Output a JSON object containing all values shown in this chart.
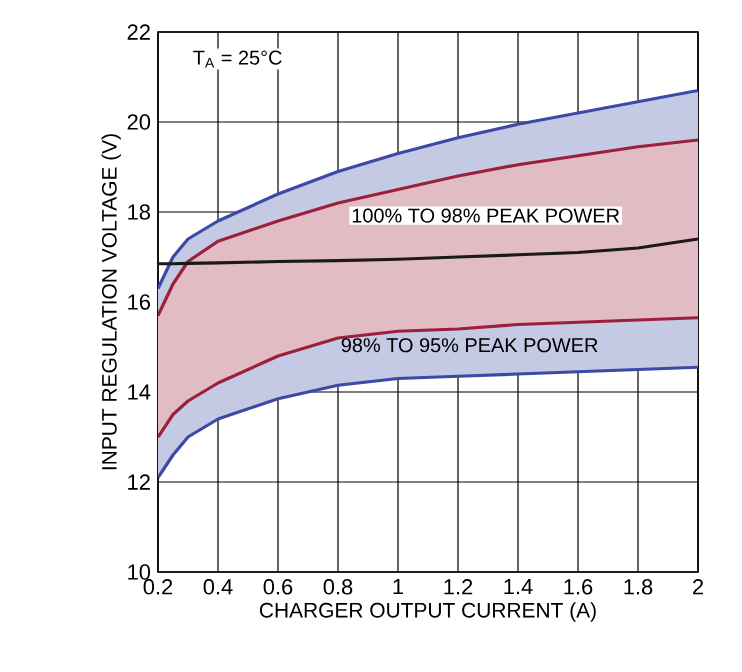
{
  "chart_data": {
    "type": "line",
    "xlabel": "CHARGER OUTPUT CURRENT (A)",
    "ylabel": "INPUT REGULATION VOLTAGE (V)",
    "x": [
      0.2,
      0.25,
      0.3,
      0.4,
      0.6,
      0.8,
      1.0,
      1.2,
      1.4,
      1.6,
      1.8,
      2.0
    ],
    "series": [
      {
        "color": "#3b4aa6",
        "values": [
          16.3,
          17.0,
          17.4,
          17.8,
          18.4,
          18.9,
          19.3,
          19.65,
          19.95,
          20.2,
          20.45,
          20.7
        ],
        "lower": [
          12.1,
          12.6,
          13.0,
          13.4,
          13.85,
          14.15,
          14.3,
          14.35,
          14.4,
          14.45,
          14.5,
          14.55
        ],
        "upper": [
          16.3,
          17.0,
          17.4,
          17.8,
          18.4,
          18.9,
          19.3,
          19.65,
          19.95,
          20.2,
          20.45,
          20.7
        ]
      },
      {
        "color": "#9c1f3c",
        "values": [
          15.7,
          16.4,
          16.9,
          17.35,
          17.8,
          18.2,
          18.5,
          18.8,
          19.05,
          19.25,
          19.45,
          19.6
        ],
        "lower": [
          13.0,
          13.5,
          13.8,
          14.2,
          14.8,
          15.2,
          15.35,
          15.4,
          15.5,
          15.55,
          15.6,
          15.65
        ],
        "upper": [
          15.7,
          16.4,
          16.9,
          17.35,
          17.8,
          18.2,
          18.5,
          18.8,
          19.05,
          19.25,
          19.45,
          19.6
        ]
      },
      {
        "color": "#9c1f3c",
        "values": [
          13.0,
          13.5,
          13.8,
          14.2,
          14.8,
          15.2,
          15.35,
          15.4,
          15.5,
          15.55,
          15.6,
          15.65
        ]
      },
      {
        "color": "#3b4aa6",
        "values": [
          12.1,
          12.6,
          13.0,
          13.4,
          13.85,
          14.15,
          14.3,
          14.35,
          14.4,
          14.45,
          14.5,
          14.55
        ]
      },
      {
        "color": "#1a1a1a",
        "values": [
          16.85,
          16.85,
          16.86,
          16.87,
          16.9,
          16.92,
          16.95,
          17.0,
          17.05,
          17.1,
          17.2,
          17.4
        ]
      }
    ],
    "xlim": [
      0.2,
      2
    ],
    "ylim": [
      10,
      22
    ],
    "xticks": [
      0.2,
      0.4,
      0.6,
      0.8,
      1,
      1.2,
      1.4,
      1.6,
      1.8,
      2
    ],
    "yticks": [
      10,
      12,
      14,
      16,
      18,
      20,
      22
    ],
    "grid": true,
    "marker": "none",
    "annotations": [
      "T$_{A}$ = 25°C",
      "100% TO 98% PEAK POWER",
      "98% TO 95% PEAK POWER"
    ]
  }
}
